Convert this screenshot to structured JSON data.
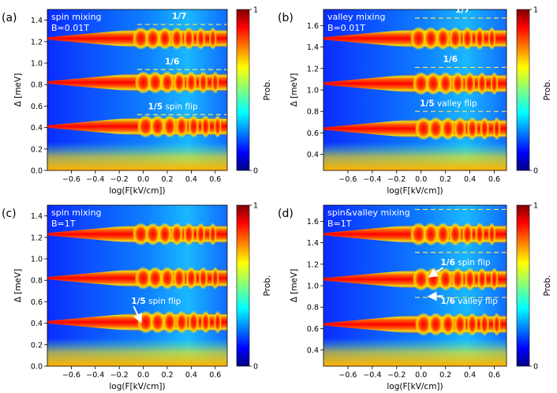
{
  "colors": {
    "colormap": [
      "#00007f",
      "#0000ff",
      "#0080ff",
      "#00ffff",
      "#80ff80",
      "#ffff00",
      "#ff8000",
      "#ff0000",
      "#7f0000"
    ],
    "annotation": "#ffffff",
    "resonance": "#ffffff"
  },
  "chart_data": [
    {
      "type": "heatmap",
      "panel_label": "(a)",
      "inset": [
        "spin mixing",
        "B=0.01T"
      ],
      "xlabel": "log(F[kV/cm])",
      "ylabel": "Δ [meV]",
      "xlim": [
        -0.8,
        0.7
      ],
      "ylim": [
        0.0,
        1.5
      ],
      "xticks": [
        -0.6,
        -0.4,
        -0.2,
        0.0,
        0.2,
        0.4,
        0.6
      ],
      "yticks": [
        0.0,
        0.2,
        0.4,
        0.6,
        0.8,
        1.0,
        1.2,
        1.4
      ],
      "ytick_labels": [
        "0.0",
        "0.2",
        "0.4",
        "0.6",
        "0.8",
        "1.0",
        "1.2",
        "1.4"
      ],
      "bands": [
        0.41,
        0.82,
        1.23
      ],
      "colorbar": {
        "label": "Prob.",
        "ticks": [
          "0",
          "1"
        ]
      },
      "annotations": [
        {
          "bold": "1/7",
          "text": "",
          "x": 0.24,
          "y": 1.41,
          "arrow": false
        },
        {
          "bold": "1/6",
          "text": "",
          "x": 0.18,
          "y": 0.99,
          "arrow": false
        },
        {
          "bold": "1/5",
          "text": " spin flip",
          "x": 0.04,
          "y": 0.57,
          "arrow": false
        }
      ]
    },
    {
      "type": "heatmap",
      "panel_label": "(b)",
      "inset": [
        "valley mixing",
        "B=0.01T"
      ],
      "xlabel": "log(F[kV/cm])",
      "ylabel": "Δ [meV]",
      "xlim": [
        -0.8,
        0.7
      ],
      "ylim": [
        0.25,
        1.75
      ],
      "xticks": [
        -0.6,
        -0.4,
        -0.2,
        0.0,
        0.2,
        0.4,
        0.6
      ],
      "yticks": [
        0.4,
        0.6,
        0.8,
        1.0,
        1.2,
        1.4,
        1.6
      ],
      "ytick_labels": [
        "0.4",
        "0.6",
        "0.8",
        "1.0",
        "1.2",
        "1.4",
        "1.6"
      ],
      "bands": [
        0.64,
        1.06,
        1.48
      ],
      "colorbar": {
        "label": "Prob.",
        "ticks": [
          "0",
          "1"
        ]
      },
      "annotations": [
        {
          "bold": "1/7",
          "text": "",
          "x": 0.28,
          "y": 1.72,
          "arrow": false
        },
        {
          "bold": "1/6",
          "text": "",
          "x": 0.18,
          "y": 1.26,
          "arrow": false
        },
        {
          "bold": "1/5",
          "text": " valley flip",
          "x": -0.01,
          "y": 0.85,
          "arrow": false
        }
      ]
    },
    {
      "type": "heatmap",
      "panel_label": "(c)",
      "inset": [
        "spin mixing",
        "B=1T"
      ],
      "xlabel": "log(F[kV/cm])",
      "ylabel": "Δ [meV]",
      "xlim": [
        -0.8,
        0.7
      ],
      "ylim": [
        0.0,
        1.5
      ],
      "xticks": [
        -0.6,
        -0.4,
        -0.2,
        0.0,
        0.2,
        0.4,
        0.6
      ],
      "yticks": [
        0.0,
        0.2,
        0.4,
        0.6,
        0.8,
        1.0,
        1.2,
        1.4
      ],
      "ytick_labels": [
        "0.0",
        "0.2",
        "0.4",
        "0.6",
        "0.8",
        "1.0",
        "1.2",
        "1.4"
      ],
      "bands": [
        0.41,
        0.82,
        1.23
      ],
      "colorbar": {
        "label": "Prob.",
        "ticks": [
          "0",
          "1"
        ]
      },
      "annotations": [
        {
          "bold": "1/5",
          "text": " spin flip",
          "x": -0.1,
          "y": 0.58,
          "arrow": true,
          "ax": -0.03,
          "ay": 0.44
        }
      ]
    },
    {
      "type": "heatmap",
      "panel_label": "(d)",
      "inset": [
        "spin&valley mixing",
        "B=1T"
      ],
      "xlabel": "log(F[kV/cm])",
      "ylabel": "Δ [meV]",
      "xlim": [
        -0.8,
        0.7
      ],
      "ylim": [
        0.25,
        1.75
      ],
      "xticks": [
        -0.6,
        -0.4,
        -0.2,
        0.0,
        0.2,
        0.4,
        0.6
      ],
      "yticks": [
        0.4,
        0.6,
        0.8,
        1.0,
        1.2,
        1.4,
        1.6
      ],
      "ytick_labels": [
        "0.4",
        "0.6",
        "0.8",
        "1.0",
        "1.2",
        "1.4",
        "1.6"
      ],
      "bands": [
        0.64,
        1.06,
        1.48
      ],
      "colorbar": {
        "label": "Prob.",
        "ticks": [
          "0",
          "1"
        ]
      },
      "annotations": [
        {
          "bold": "1/6",
          "text": " spin flip",
          "x": 0.16,
          "y": 1.19,
          "arrow": true,
          "ax": 0.09,
          "ay": 1.1
        },
        {
          "bold": "1/6",
          "text": " valley flip",
          "x": 0.16,
          "y": 0.83,
          "arrow": true,
          "ax": 0.09,
          "ay": 0.9
        }
      ]
    }
  ]
}
